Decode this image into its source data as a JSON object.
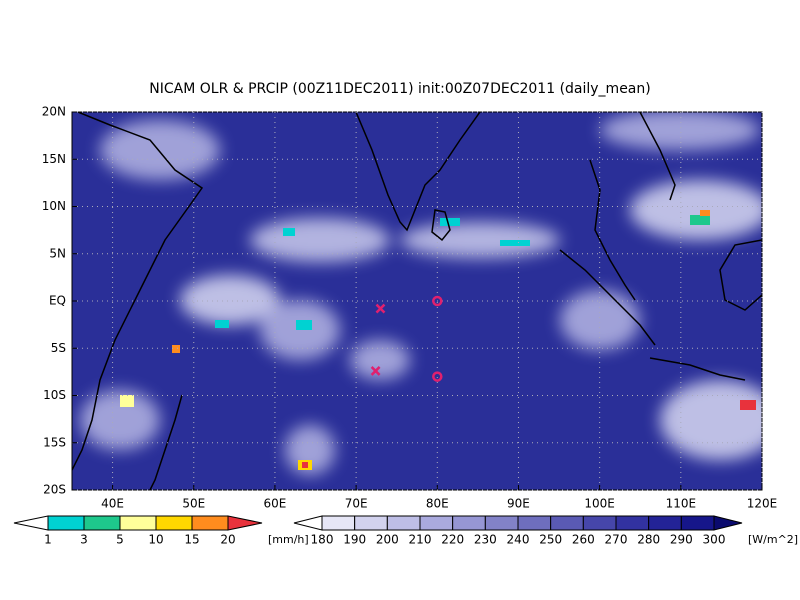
{
  "title": "NICAM OLR & PRCIP (00Z11DEC2011) init:00Z07DEC2011 (daily_mean)",
  "map": {
    "lon_range": [
      35,
      120
    ],
    "lat_range": [
      -20,
      20
    ],
    "lon_ticks": [
      {
        "value": 40,
        "label": "40E"
      },
      {
        "value": 50,
        "label": "50E"
      },
      {
        "value": 60,
        "label": "60E"
      },
      {
        "value": 70,
        "label": "70E"
      },
      {
        "value": 80,
        "label": "80E"
      },
      {
        "value": 90,
        "label": "90E"
      },
      {
        "value": 100,
        "label": "100E"
      },
      {
        "value": 110,
        "label": "110E"
      },
      {
        "value": 120,
        "label": "120E"
      }
    ],
    "lat_ticks": [
      {
        "value": 20,
        "label": "20N"
      },
      {
        "value": 15,
        "label": "15N"
      },
      {
        "value": 10,
        "label": "10N"
      },
      {
        "value": 5,
        "label": "5N"
      },
      {
        "value": 0,
        "label": "EQ"
      },
      {
        "value": -5,
        "label": "5S"
      },
      {
        "value": -10,
        "label": "10S"
      },
      {
        "value": -15,
        "label": "15S"
      },
      {
        "value": -20,
        "label": "20S"
      }
    ],
    "markers": [
      {
        "symbol": "x",
        "lon": 73,
        "lat": -0.8,
        "color": "#e0206e"
      },
      {
        "symbol": "x",
        "lon": 72.4,
        "lat": -7.4,
        "color": "#e0206e"
      },
      {
        "symbol": "o",
        "lon": 80,
        "lat": 0,
        "color": "#e0206e"
      },
      {
        "symbol": "o",
        "lon": 80,
        "lat": -8,
        "color": "#e0206e"
      }
    ]
  },
  "precip_colorbar": {
    "labels": [
      "1",
      "3",
      "5",
      "10",
      "15",
      "20"
    ],
    "unit": "[mm/h]",
    "colors": [
      "#ffffff",
      "#00d2d2",
      "#1ec88c",
      "#ffff9a",
      "#ffd800",
      "#ff8c1e",
      "#e8323c"
    ]
  },
  "olr_colorbar": {
    "labels": [
      "180",
      "190",
      "200",
      "210",
      "220",
      "230",
      "240",
      "250",
      "260",
      "270",
      "280",
      "290",
      "300"
    ],
    "unit": "[W/m^2]",
    "colors": [
      "#ffffff",
      "#e6e6f6",
      "#d2d2ee",
      "#bebee6",
      "#aaaade",
      "#9696d4",
      "#8282c8",
      "#6e6ebe",
      "#5a5ab4",
      "#4646aa",
      "#3232a0",
      "#232396",
      "#16168a",
      "#0a0a6e"
    ]
  }
}
